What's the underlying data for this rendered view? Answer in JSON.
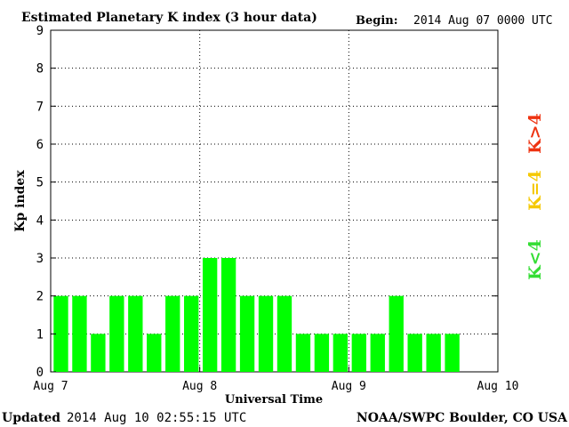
{
  "chart_data": {
    "type": "bar",
    "title": "Estimated Planetary K index (3 hour data)",
    "begin_label": "Begin:",
    "begin_value": "2014 Aug 07 0000 UTC",
    "ylabel": "Kp index",
    "xlabel": "Universal Time",
    "ylim": [
      0,
      9
    ],
    "yticks": [
      "0",
      "1",
      "2",
      "3",
      "4",
      "5",
      "6",
      "7",
      "8",
      "9"
    ],
    "x_tick_labels": [
      "Aug 7",
      "Aug 8",
      "Aug 9",
      "Aug 10"
    ],
    "interval_hours": 3,
    "values": [
      2,
      2,
      1,
      2,
      2,
      1,
      2,
      2,
      3,
      3,
      2,
      2,
      2,
      1,
      1,
      1,
      1,
      1,
      2,
      1,
      1,
      1
    ],
    "bar_color": "#00ff00",
    "grid": "dotted vertical at day boundaries, dotted horizontal at each integer",
    "legend_position": "right, vertical",
    "legend": [
      {
        "label": "K<4",
        "color": "#33dd33"
      },
      {
        "label": "K=4",
        "color": "#f5c800"
      },
      {
        "label": "K>4",
        "color": "#ee3311"
      }
    ]
  },
  "footer": {
    "updated_label": "Updated",
    "updated_value": "2014 Aug 10 02:55:15 UTC",
    "credit": "NOAA/SWPC Boulder, CO USA"
  }
}
